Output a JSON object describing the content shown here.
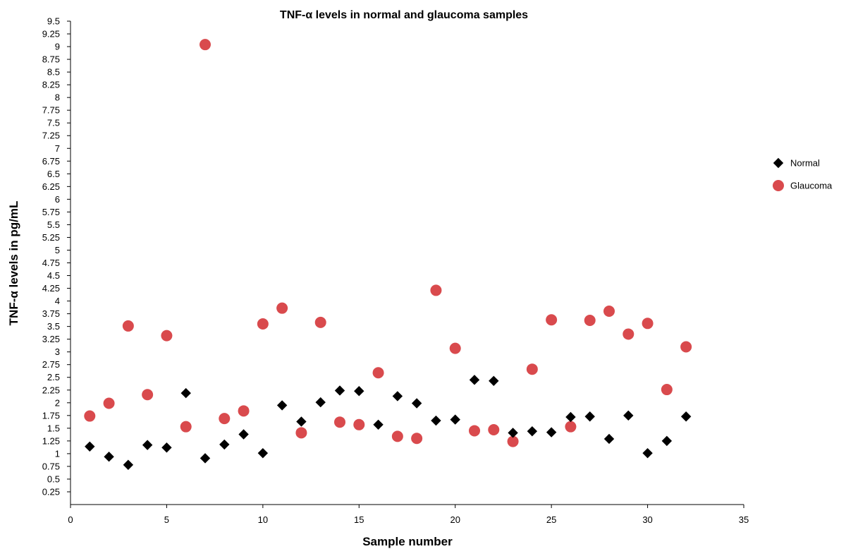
{
  "chart_data": {
    "type": "scatter",
    "title": "TNF-α levels in normal and glaucoma samples",
    "xlabel": "Sample number",
    "ylabel": "TNF-α levels in pg/mL",
    "xlim": [
      0,
      35
    ],
    "ylim": [
      0,
      9.5
    ],
    "x_ticks": [
      "0",
      "5",
      "10",
      "15",
      "20",
      "25",
      "30",
      "35"
    ],
    "y_ticks": [
      "0.25",
      "0.5",
      "0.75",
      "1",
      "1.25",
      "1.5",
      "1.75",
      "2",
      "2.25",
      "2.5",
      "2.75",
      "3",
      "3.25",
      "3.5",
      "3.75",
      "4",
      "4.25",
      "4.5",
      "4.75",
      "5",
      "5.25",
      "5.5",
      "5.75",
      "6",
      "6.25",
      "6.5",
      "6.75",
      "7",
      "7.25",
      "7.5",
      "7.75",
      "8",
      "8.25",
      "8.5",
      "8.75",
      "9",
      "9.25",
      "9.5"
    ],
    "grid": false,
    "legend_position": "right",
    "series": [
      {
        "name": "Normal",
        "marker": "diamond",
        "color": "#000000",
        "x": [
          1,
          2,
          3,
          4,
          5,
          6,
          7,
          8,
          9,
          10,
          11,
          12,
          13,
          14,
          15,
          16,
          17,
          18,
          19,
          20,
          21,
          22,
          23,
          24,
          25,
          26,
          27,
          28,
          29,
          30,
          31,
          32
        ],
        "y": [
          1.14,
          0.94,
          0.78,
          1.17,
          1.12,
          2.19,
          0.91,
          1.18,
          1.38,
          1.01,
          1.95,
          1.63,
          2.01,
          2.24,
          2.23,
          1.57,
          2.13,
          1.99,
          1.65,
          1.67,
          2.45,
          2.43,
          1.41,
          1.44,
          1.42,
          1.72,
          1.73,
          1.29,
          1.75,
          1.01,
          1.25,
          1.73
        ]
      },
      {
        "name": "Glaucoma",
        "marker": "circle",
        "color": "#d94a4d",
        "x": [
          1,
          2,
          3,
          4,
          5,
          6,
          7,
          8,
          9,
          10,
          11,
          12,
          13,
          14,
          15,
          16,
          17,
          18,
          19,
          20,
          21,
          22,
          23,
          24,
          25,
          26,
          27,
          28,
          29,
          30,
          31,
          32
        ],
        "y": [
          1.74,
          1.99,
          3.51,
          2.16,
          3.32,
          1.53,
          9.04,
          1.69,
          1.84,
          3.55,
          3.86,
          1.41,
          3.58,
          1.62,
          1.57,
          2.59,
          1.34,
          1.3,
          4.21,
          3.07,
          1.45,
          1.47,
          1.24,
          2.66,
          3.63,
          1.53,
          3.62,
          3.8,
          3.35,
          3.56,
          2.26,
          3.1
        ]
      }
    ]
  }
}
